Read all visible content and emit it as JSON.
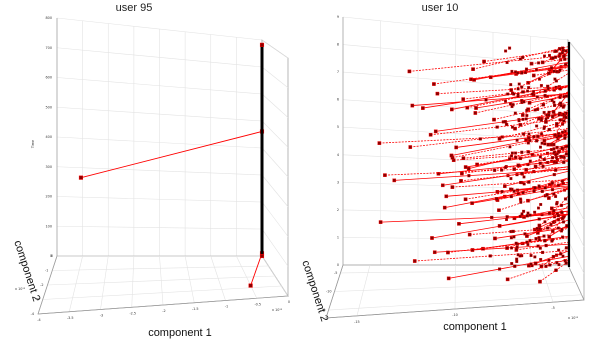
{
  "chart_data": [
    {
      "type": "3d-line",
      "title": "user 95",
      "xlabel": "component 1",
      "ylabel": "component 2",
      "zlabel": "Time",
      "x_exponent": "x 10¹³",
      "y_exponent": "x 10¹³",
      "zlim": [
        0,
        800
      ],
      "z_ticks": [
        "0",
        "100",
        "200",
        "300",
        "400",
        "500",
        "600",
        "700",
        "800"
      ],
      "x_ticks": [
        "-4",
        "-3.5",
        "-3",
        "-2.5",
        "-2",
        "-1.5",
        "-1",
        "-0.5",
        "0"
      ],
      "y_ticks": [
        "-4",
        "-3",
        "-2",
        "-1",
        "0"
      ],
      "grid": true,
      "series": [
        {
          "color": "#ff0000",
          "points": [
            {
              "x": -3.5,
              "y": -0.5,
              "z": 290
            },
            {
              "x": 0,
              "y": 0,
              "z": 460
            }
          ]
        },
        {
          "color": "#ff0000",
          "points": [
            {
              "x": -0.5,
              "y": -2.8,
              "z": 0
            },
            {
              "x": 0,
              "y": 0,
              "z": 10
            }
          ]
        },
        {
          "color": "#000000",
          "points": [
            {
              "x": 0,
              "y": 0,
              "z": 0
            },
            {
              "x": 0,
              "y": 0,
              "z": 780
            }
          ]
        }
      ]
    },
    {
      "type": "3d-line",
      "title": "user 10",
      "xlabel": "component 1",
      "ylabel": "component 2",
      "zlabel": "Time",
      "x_exponent": "x 10¹³",
      "y_exponent": "",
      "x_ticks": [
        "-15",
        "-10",
        "-5"
      ],
      "y_ticks": [
        "-15",
        "-10",
        "-5"
      ],
      "z_ticks": [
        "0",
        "1",
        "2",
        "3",
        "4",
        "5",
        "6",
        "7",
        "8",
        "9"
      ],
      "grid": true,
      "series_color": "#ff0000",
      "trend_line_color": "#000000"
    }
  ]
}
